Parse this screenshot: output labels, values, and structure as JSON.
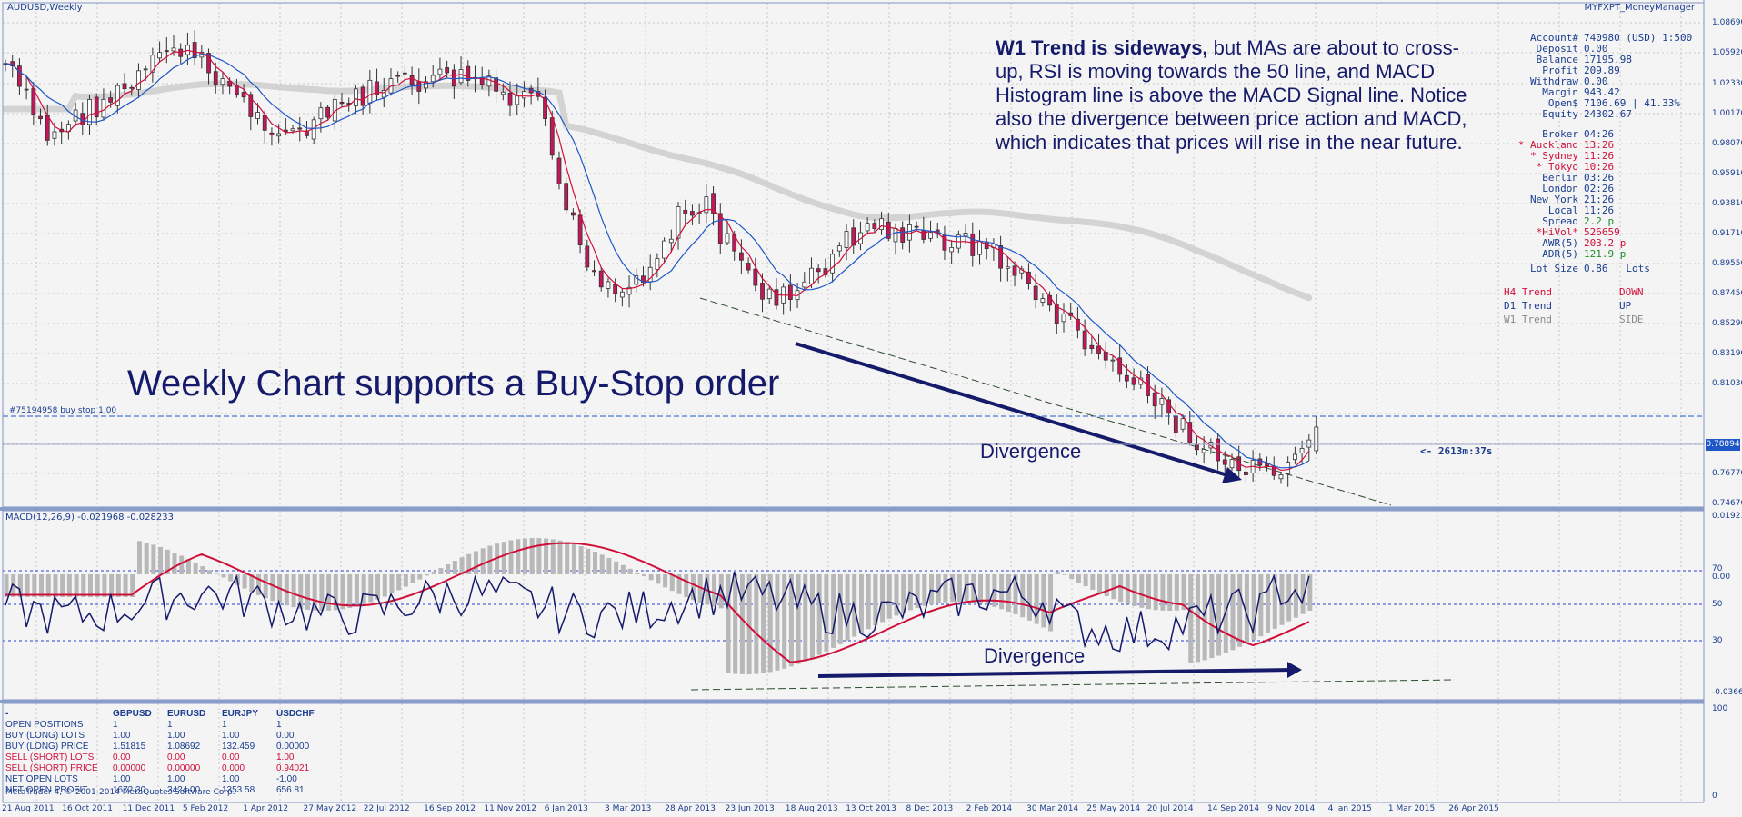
{
  "window": {
    "title": "AUDUSD,Weekly",
    "expert_name": "MYFXPT_MoneyManager"
  },
  "annotations": {
    "note_bold": "W1 Trend is sideways,",
    "note_rest": " but MAs are about to cross-up, RSI is moving towards the 50 line, and MACD Histogram line is above the MACD Signal line. Notice also the divergence between price action and MACD, which indicates that prices will rise in the near future.",
    "headline": "Weekly Chart supports a Buy-Stop order",
    "divergence_top": "Divergence",
    "divergence_bottom": "Divergence"
  },
  "order_line": "#75194958 buy stop 1.00",
  "timer": "<- 2613m:37s",
  "current_price": "0.78894",
  "macd_label": "MACD(12,26,9) -0.021968 -0.028233",
  "copyright": "MetaTrader 4, © 2001-2014 MetaQuotes Software Corp.",
  "account": [
    {
      "k": "Account#",
      "v": "740980 (USD) 1:500",
      "c": "#1a3d8f"
    },
    {
      "k": "Deposit",
      "v": "0.00",
      "c": "#1a3d8f"
    },
    {
      "k": "Balance",
      "v": "17195.98",
      "c": "#1a3d8f"
    },
    {
      "k": "Profit",
      "v": "209.89",
      "c": "#1a3d8f"
    },
    {
      "k": "Withdraw",
      "v": "0.00",
      "c": "#1a3d8f"
    },
    {
      "k": "Margin",
      "v": "943.42",
      "c": "#1a3d8f"
    },
    {
      "k": "Open$",
      "v": "7106.69 |     41.33%",
      "c": "#1a3d8f"
    },
    {
      "k": "Equity",
      "v": "24302.67",
      "c": "#1a3d8f"
    }
  ],
  "clocks": [
    {
      "k": "Broker",
      "v": "04:26",
      "c": "#1a3d8f"
    },
    {
      "k": "* Auckland",
      "v": "13:26",
      "c": "#d0103a"
    },
    {
      "k": "* Sydney",
      "v": "11:26",
      "c": "#d0103a"
    },
    {
      "k": "* Tokyo",
      "v": "10:26",
      "c": "#d0103a"
    },
    {
      "k": "Berlin",
      "v": "03:26",
      "c": "#1a3d8f"
    },
    {
      "k": "London",
      "v": "02:26",
      "c": "#1a3d8f"
    },
    {
      "k": "New York",
      "v": "21:26",
      "c": "#1a3d8f"
    },
    {
      "k": "Local",
      "v": "11:26",
      "c": "#1a3d8f"
    },
    {
      "k": "Spread",
      "v": "2.2 p",
      "c": "#1a3d8f",
      "vc": "#1a8f2a"
    },
    {
      "k": "*HiVol*",
      "v": "526659",
      "c": "#d0103a"
    },
    {
      "k": "AWR(5)",
      "v": "203.2 p",
      "c": "#1a3d8f",
      "vc": "#d0103a"
    },
    {
      "k": "ADR(5)",
      "v": "121.9 p",
      "c": "#1a3d8f",
      "vc": "#1a8f2a"
    }
  ],
  "lot_size": {
    "k": "Lot Size",
    "v": "0.86 | Lots"
  },
  "trends": [
    {
      "k": "H4 Trend",
      "v": "DOWN",
      "c": "#d0103a"
    },
    {
      "k": "D1 Trend",
      "v": "UP",
      "c": "#1a3d8f"
    },
    {
      "k": "W1 Trend",
      "v": "SIDE",
      "c": "#8a8a8a"
    }
  ],
  "positions_table": {
    "headers": [
      "-",
      "GBPUSD",
      "EURUSD",
      "EURJPY",
      "USDCHF"
    ],
    "rows": [
      {
        "label": "OPEN POSITIONS",
        "vals": [
          "1",
          "1",
          "1",
          "1"
        ],
        "c": "#1a3d8f"
      },
      {
        "label": "BUY (LONG) LOTS",
        "vals": [
          "1.00",
          "1.00",
          "1.00",
          "0.00"
        ],
        "c": "#1a3d8f"
      },
      {
        "label": "BUY (LONG) PRICE",
        "vals": [
          "1.51815",
          "1.08692",
          "132.459",
          "0.00000"
        ],
        "c": "#1a3d8f"
      },
      {
        "label": "SELL (SHORT) LOTS",
        "vals": [
          "0.00",
          "0.00",
          "0.00",
          "1.00"
        ],
        "c": "#d0103a"
      },
      {
        "label": "SELL (SHORT) PRICE",
        "vals": [
          "0.00000",
          "0.00000",
          "0.000",
          "0.94021"
        ],
        "c": "#d0103a"
      },
      {
        "label": "NET OPEN LOTS",
        "vals": [
          "1.00",
          "1.00",
          "1.00",
          "-1.00"
        ],
        "c": "#1a3d8f"
      },
      {
        "label": "NET OPEN PROFIT",
        "vals": [
          "1672.30",
          "3424.00",
          "1353.58",
          "656.81"
        ],
        "c": "#1a3d8f"
      }
    ]
  },
  "price_axis": [
    "1.08690",
    "1.05920",
    "1.02330",
    "1.00170",
    "0.98070",
    "0.95910",
    "0.93810",
    "0.91710",
    "0.89550",
    "0.87450",
    "0.85290",
    "0.83190",
    "0.81030",
    "0.78894",
    "0.76770",
    "0.74670"
  ],
  "indicator_axis": [
    "0.019219",
    "70",
    "0.00",
    "50",
    "30",
    "-0.036605"
  ],
  "bottom_axis": [
    "100",
    "0"
  ],
  "time_axis": [
    "21 Aug 2011",
    "16 Oct 2011",
    "11 Dec 2011",
    "5 Feb 2012",
    "1 Apr 2012",
    "27 May 2012",
    "22 Jul 2012",
    "16 Sep 2012",
    "11 Nov 2012",
    "6 Jan 2013",
    "3 Mar 2013",
    "28 Apr 2013",
    "23 Jun 2013",
    "18 Aug 2013",
    "13 Oct 2013",
    "8 Dec 2013",
    "2 Feb 2014",
    "30 Mar 2014",
    "25 May 2014",
    "20 Jul 2014",
    "14 Sep 2014",
    "9 Nov 2014",
    "4 Jan 2015",
    "1 Mar 2015",
    "26 Apr 2015"
  ],
  "colors": {
    "bull": "#ffffff",
    "bear": "#c2185b",
    "wick": "#333333",
    "ma_fast": "#d0103a",
    "ma_slow": "#1f57c7",
    "ma_long": "#d3d3d3",
    "macd_hist": "#b8b8b8",
    "rsi": "#151a6a",
    "signal": "#d0103a"
  }
}
